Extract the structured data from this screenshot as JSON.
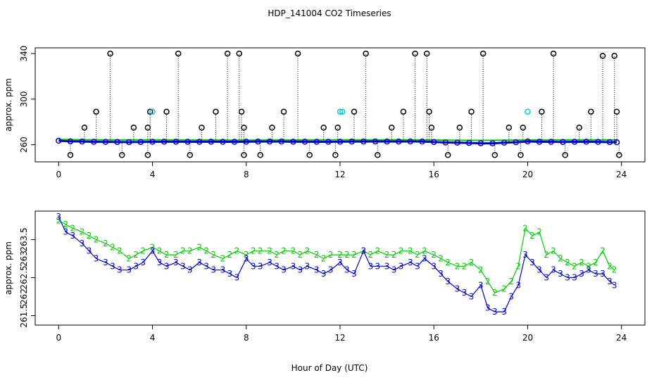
{
  "title": "HDP_141004  CO2 Timeseries",
  "chart_data": [
    {
      "type": "scatter",
      "ylabel": "approx. ppm",
      "xlim": [
        -1,
        25
      ],
      "ylim": [
        245,
        345
      ],
      "xticks": [
        0,
        4,
        8,
        12,
        16,
        20,
        24
      ],
      "yticks": [
        260,
        300,
        340
      ],
      "ytick_labels": [
        "260",
        "300",
        "340"
      ],
      "grid": false,
      "series": [
        {
          "marker": "line",
          "color": "#00cc00",
          "x": [
            0.0,
            2.0,
            4.0,
            6.0,
            8.0,
            10.0,
            12.0,
            14.0,
            16.0,
            18.0,
            20.0,
            22.0,
            23.8
          ],
          "y": [
            264.6,
            264.2,
            264.3,
            264.1,
            264.0,
            264.1,
            264.3,
            264.3,
            264.1,
            263.8,
            264.1,
            264.3,
            264.2
          ]
        },
        {
          "marker": "circle",
          "color": "#0000cc",
          "x": [
            0.0,
            0.5,
            1.0,
            1.5,
            2.0,
            2.5,
            3.0,
            3.5,
            4.0,
            4.5,
            5.0,
            5.5,
            6.0,
            6.5,
            7.0,
            7.5,
            8.0,
            8.5,
            9.0,
            9.5,
            10.0,
            10.5,
            11.0,
            11.5,
            12.0,
            12.5,
            13.0,
            13.5,
            14.0,
            14.5,
            15.0,
            15.5,
            16.0,
            16.5,
            17.0,
            17.5,
            18.0,
            18.5,
            19.0,
            19.5,
            20.0,
            20.5,
            21.0,
            21.5,
            22.0,
            22.5,
            23.0,
            23.5,
            23.8
          ],
          "y": [
            263.5,
            263.0,
            262.8,
            262.6,
            262.5,
            262.4,
            262.3,
            262.4,
            262.6,
            262.7,
            262.7,
            262.6,
            262.6,
            262.7,
            262.6,
            262.6,
            262.7,
            262.8,
            262.8,
            262.8,
            262.7,
            262.7,
            262.6,
            262.6,
            262.7,
            262.8,
            262.8,
            262.9,
            262.8,
            262.8,
            262.9,
            262.8,
            262.4,
            262.0,
            261.8,
            261.6,
            261.3,
            261.2,
            261.8,
            262.2,
            262.9,
            262.6,
            262.6,
            262.4,
            262.6,
            262.7,
            262.5,
            262.3,
            262.2
          ]
        },
        {
          "marker": "circle",
          "color": "#000000",
          "x": [
            0.5,
            1.1,
            1.6,
            2.2,
            2.7,
            3.2,
            3.8,
            3.8,
            3.9,
            4.6,
            5.1,
            5.6,
            6.1,
            6.7,
            7.2,
            7.7,
            7.8,
            7.9,
            7.9,
            8.6,
            9.1,
            9.6,
            10.2,
            10.7,
            11.3,
            11.8,
            11.9,
            12.6,
            13.1,
            13.6,
            14.2,
            14.7,
            15.2,
            15.7,
            15.8,
            15.9,
            16.6,
            17.1,
            17.6,
            18.1,
            18.6,
            19.2,
            19.7,
            19.8,
            20.6,
            21.1,
            21.6,
            22.2,
            22.7,
            23.2,
            23.7,
            23.8,
            23.9
          ],
          "y": [
            251,
            275,
            289,
            340,
            251,
            275,
            251,
            275,
            289,
            289,
            340,
            251,
            275,
            289,
            340,
            340,
            289,
            275,
            251,
            251,
            275,
            289,
            340,
            251,
            275,
            251,
            275,
            289,
            340,
            251,
            275,
            289,
            340,
            340,
            289,
            275,
            251,
            275,
            289,
            340,
            251,
            275,
            251,
            275,
            289,
            340,
            251,
            275,
            289,
            338,
            338,
            289,
            251
          ]
        },
        {
          "marker": "circle",
          "color": "#00cccc",
          "x": [
            4.0,
            12.0,
            12.1,
            20.0
          ],
          "y": [
            289,
            289,
            289,
            289
          ]
        }
      ]
    },
    {
      "type": "scatter",
      "ylabel": "approx. ppm",
      "xlabel": "Hour of Day (UTC)",
      "xlim": [
        -1,
        25
      ],
      "ylim": [
        261.25,
        264.25
      ],
      "xticks": [
        0,
        4,
        8,
        12,
        16,
        20,
        24
      ],
      "yticks": [
        261.5,
        262.5,
        263.5
      ],
      "ytick_labels": [
        "261.5",
        "262.5",
        "263.5"
      ],
      "extra_tick_labels": [
        {
          "y": 262.0,
          "label": "262"
        },
        {
          "y": 263.0,
          "label": "263"
        }
      ],
      "grid": false,
      "series": [
        {
          "name": "2",
          "marker": "text",
          "color": "#00cc00",
          "x": [
            0.0,
            0.3,
            0.6,
            1.0,
            1.3,
            1.6,
            2.0,
            2.3,
            2.6,
            3.0,
            3.3,
            3.6,
            4.0,
            4.3,
            4.6,
            5.0,
            5.3,
            5.6,
            6.0,
            6.3,
            6.6,
            7.0,
            7.3,
            7.6,
            8.0,
            8.3,
            8.6,
            9.0,
            9.3,
            9.6,
            10.0,
            10.3,
            10.6,
            11.0,
            11.3,
            11.6,
            12.0,
            12.3,
            12.6,
            13.0,
            13.3,
            13.6,
            14.0,
            14.3,
            14.6,
            15.0,
            15.3,
            15.6,
            16.0,
            16.3,
            16.6,
            17.0,
            17.3,
            17.6,
            18.0,
            18.3,
            18.6,
            19.0,
            19.3,
            19.6,
            19.9,
            20.2,
            20.5,
            20.8,
            21.1,
            21.4,
            21.7,
            22.0,
            22.3,
            22.6,
            22.9,
            23.2,
            23.5,
            23.7
          ],
          "y": [
            264.0,
            263.9,
            263.8,
            263.7,
            263.6,
            263.5,
            263.4,
            263.3,
            263.2,
            263.0,
            263.1,
            263.2,
            263.3,
            263.2,
            263.1,
            263.1,
            263.2,
            263.2,
            263.3,
            263.2,
            263.1,
            263.0,
            263.1,
            263.2,
            263.1,
            263.2,
            263.2,
            263.2,
            263.1,
            263.2,
            263.2,
            263.1,
            263.2,
            263.1,
            263.0,
            263.1,
            263.1,
            263.1,
            263.1,
            263.2,
            263.1,
            263.2,
            263.1,
            263.1,
            263.2,
            263.2,
            263.1,
            263.2,
            263.1,
            263.0,
            262.9,
            262.8,
            262.8,
            262.9,
            262.7,
            262.4,
            262.1,
            262.2,
            262.4,
            262.8,
            263.8,
            263.6,
            263.7,
            263.1,
            263.2,
            263.0,
            262.9,
            262.8,
            262.9,
            262.8,
            262.9,
            263.2,
            262.8,
            262.7
          ]
        },
        {
          "name": "3",
          "marker": "text",
          "color": "#0000cc",
          "x": [
            0.0,
            0.3,
            0.6,
            1.0,
            1.3,
            1.6,
            2.0,
            2.3,
            2.6,
            3.0,
            3.3,
            3.6,
            4.0,
            4.3,
            4.6,
            5.0,
            5.3,
            5.6,
            6.0,
            6.3,
            6.6,
            7.0,
            7.3,
            7.6,
            8.0,
            8.3,
            8.6,
            9.0,
            9.3,
            9.6,
            10.0,
            10.3,
            10.6,
            11.0,
            11.3,
            11.6,
            12.0,
            12.3,
            12.6,
            13.0,
            13.3,
            13.6,
            14.0,
            14.3,
            14.6,
            15.0,
            15.3,
            15.6,
            16.0,
            16.3,
            16.6,
            17.0,
            17.3,
            17.6,
            18.0,
            18.3,
            18.6,
            19.0,
            19.3,
            19.6,
            19.9,
            20.2,
            20.5,
            20.8,
            21.1,
            21.4,
            21.7,
            22.0,
            22.3,
            22.6,
            22.9,
            23.2,
            23.5,
            23.7
          ],
          "y": [
            264.1,
            263.7,
            263.6,
            263.4,
            263.2,
            263.0,
            262.9,
            262.8,
            262.7,
            262.7,
            262.8,
            262.9,
            263.2,
            262.9,
            262.8,
            262.9,
            262.8,
            262.7,
            262.9,
            262.8,
            262.7,
            262.7,
            262.6,
            262.5,
            263.0,
            262.8,
            262.8,
            262.9,
            262.8,
            262.7,
            262.8,
            262.7,
            262.8,
            262.7,
            262.6,
            262.7,
            262.9,
            262.7,
            262.6,
            263.2,
            262.8,
            262.8,
            262.8,
            262.7,
            262.8,
            262.9,
            262.8,
            263.0,
            262.8,
            262.6,
            262.4,
            262.2,
            262.1,
            262.0,
            262.3,
            261.7,
            261.6,
            261.6,
            262.0,
            262.3,
            263.1,
            262.9,
            262.7,
            262.5,
            262.7,
            262.6,
            262.5,
            262.5,
            262.6,
            262.7,
            262.6,
            262.6,
            262.4,
            262.3
          ]
        }
      ]
    }
  ]
}
